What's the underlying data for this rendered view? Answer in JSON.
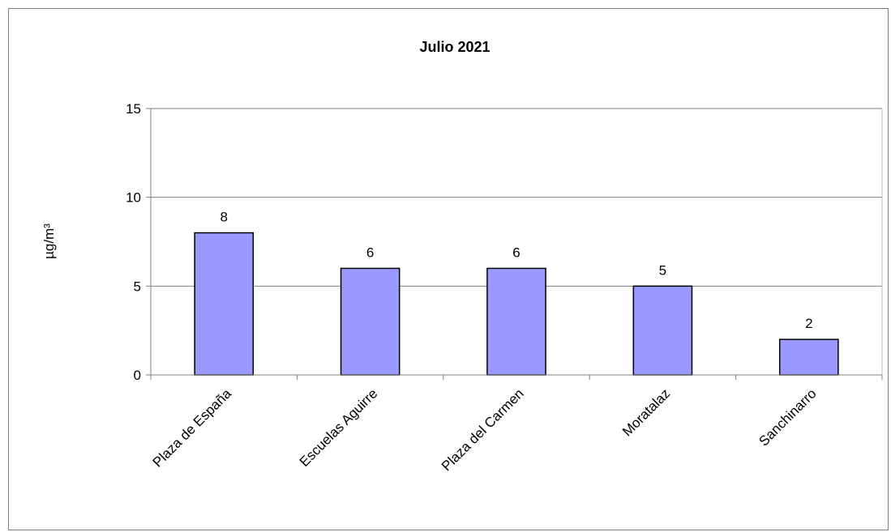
{
  "chart_data": {
    "type": "bar",
    "title": "Julio 2021",
    "ylabel": "µg/m³",
    "xlabel": "",
    "categories": [
      "Plaza de España",
      "Escuelas Aguirre",
      "Plaza del Carmen",
      "Moratalaz",
      "Sanchinarro"
    ],
    "values": [
      8,
      6,
      6,
      5,
      2
    ],
    "data_labels": [
      "8",
      "6",
      "6",
      "5",
      "2"
    ],
    "ylim": [
      0,
      15
    ],
    "yticks": [
      0,
      5,
      10,
      15
    ],
    "grid": true,
    "legend": "none",
    "colors": {
      "bar_fill": "#9999ff",
      "bar_stroke": "#000000",
      "grid": "#808080"
    }
  }
}
